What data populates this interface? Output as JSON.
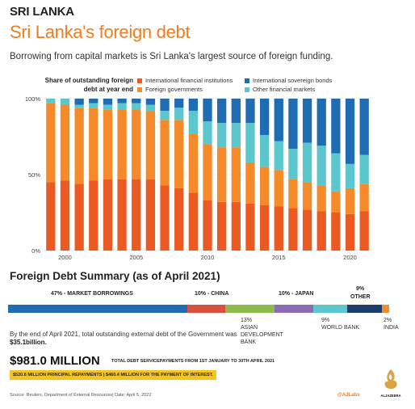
{
  "header": {
    "kicker": "SRI LANKA",
    "title": "Sri Lanka's foreign debt",
    "subtitle": "Borrowing from  capital markets is Sri Lanka's largest source of foreign funding."
  },
  "legend": {
    "title": "Share of outstanding foreign debt at year end",
    "items": [
      {
        "label": "International financial institutions",
        "color": "#ec5a24"
      },
      {
        "label": "International sovereign bonds",
        "color": "#1f6cb2"
      },
      {
        "label": "Foreign governments",
        "color": "#f58a2a"
      },
      {
        "label": "Other financial markets",
        "color": "#5cc6cd"
      }
    ]
  },
  "chart_data": {
    "type": "bar",
    "stacked": true,
    "x": [
      1999,
      2000,
      2001,
      2002,
      2003,
      2004,
      2005,
      2006,
      2007,
      2008,
      2009,
      2010,
      2011,
      2012,
      2013,
      2014,
      2015,
      2016,
      2017,
      2018,
      2019,
      2020,
      2021
    ],
    "x_tick_labels": [
      "2000",
      "2005",
      "2010",
      "2015",
      "2020"
    ],
    "y_tick_labels": [
      "0%",
      "50%",
      "100%"
    ],
    "ylim": [
      0,
      100
    ],
    "series": [
      {
        "name": "International financial institutions",
        "color": "#ec5a24",
        "values": [
          45,
          46,
          44,
          46,
          47,
          47,
          47,
          47,
          43,
          41,
          38,
          33,
          32,
          32,
          31,
          30,
          29,
          28,
          27,
          26,
          25,
          24,
          26
        ]
      },
      {
        "name": "Foreign governments",
        "color": "#f58a2a",
        "values": [
          52,
          50,
          50,
          48,
          46,
          46,
          46,
          45,
          43,
          45,
          39,
          37,
          36,
          36,
          27,
          25,
          24,
          19,
          18,
          17,
          14,
          17,
          18
        ]
      },
      {
        "name": "Other financial markets",
        "color": "#5cc6cd",
        "values": [
          3,
          4,
          2,
          3,
          3,
          4,
          4,
          4,
          6,
          8,
          15,
          15,
          16,
          16,
          26,
          21,
          19,
          20,
          26,
          26,
          25,
          16,
          19
        ]
      },
      {
        "name": "International sovereign bonds",
        "color": "#1f6cb2",
        "values": [
          0,
          0,
          4,
          3,
          4,
          3,
          3,
          4,
          8,
          6,
          8,
          15,
          16,
          16,
          16,
          24,
          28,
          33,
          29,
          31,
          36,
          43,
          37
        ]
      }
    ]
  },
  "summary": {
    "title": "Foreign Debt Summary (as of April 2021)",
    "segments": [
      {
        "label": "47% - MARKET BORROWINGS",
        "pct": 47,
        "color": "#1f6cb2"
      },
      {
        "label": "10% - CHINA",
        "pct": 10,
        "color": "#d9503e"
      },
      {
        "label": "13% ASIAN DEVELOPMENT BANK",
        "pct": 13,
        "color": "#8dba4a"
      },
      {
        "label": "10% - JAPAN",
        "pct": 10,
        "color": "#8d6bb5"
      },
      {
        "label": "9% WORLD BANK",
        "pct": 9,
        "color": "#5cc6cd"
      },
      {
        "label": "9% OTHER",
        "pct": 9,
        "color": "#1d3d6e"
      },
      {
        "label": "2% INDIA",
        "pct": 2,
        "color": "#f58a2a"
      }
    ],
    "labels": {
      "market": "47% - MARKET BORROWINGS",
      "china": "10% - CHINA",
      "japan": "10% - JAPAN",
      "other_pct": "9%",
      "other_name": "OTHER",
      "adb_pct": "13%",
      "adb_l1": "ASIAN",
      "adb_l2": "DEVELOPMENT",
      "adb_l3": "BANK",
      "wb_pct": "9%",
      "wb_name": "WORLD BANK",
      "india_pct": "2%",
      "india_name": "INDIA"
    },
    "note_prefix": "By the end of April 2021, total outstanding external debt of the Government was ",
    "note_amount": "$35.1billion.",
    "big_amount": "$981.0 MILLION",
    "big_desc": "TOTAL DEBT SERVICEPAYMENTS FROM 1ST JANUARY TO 30TH APRIL 2021",
    "highlight": "$520.6 MILLION PRINCIPAL REPAYMENTS | $460.4 MILLION FOR THE PAYMENT OF INTEREST."
  },
  "footer": {
    "source": "Source: Reuters, Department of External Resources| Date: April 5, 2022",
    "handle": "@AJLabs",
    "logo_text": "ALJAZEERA"
  }
}
